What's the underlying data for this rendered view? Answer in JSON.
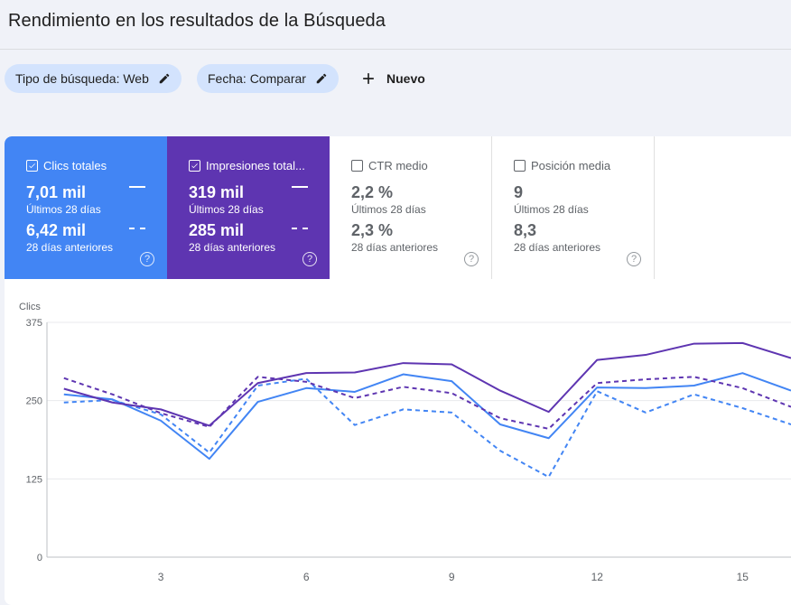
{
  "header": {
    "title": "Rendimiento en los resultados de la Búsqueda"
  },
  "filters": {
    "search_type": "Tipo de búsqueda: Web",
    "date": "Fecha: Comparar",
    "new_label": "Nuevo"
  },
  "metrics": [
    {
      "label": "Clics totales",
      "checked": true,
      "current": "7,01 mil",
      "current_period": "Últimos 28 días",
      "previous": "6,42 mil",
      "previous_period": "28 días anteriores"
    },
    {
      "label": "Impresiones total...",
      "checked": true,
      "current": "319 mil",
      "current_period": "Últimos 28 días",
      "previous": "285 mil",
      "previous_period": "28 días anteriores"
    },
    {
      "label": "CTR medio",
      "checked": false,
      "current": "2,2 %",
      "current_period": "Últimos 28 días",
      "previous": "2,3 %",
      "previous_period": "28 días anteriores"
    },
    {
      "label": "Posición media",
      "checked": false,
      "current": "9",
      "current_period": "Últimos 28 días",
      "previous": "8,3",
      "previous_period": "28 días anteriores"
    }
  ],
  "colors": {
    "clicks": "#4285f4",
    "impressions": "#5e35b1",
    "chip_bg": "#d3e3fd"
  },
  "chart_data": {
    "type": "line",
    "ylabel": "Clics",
    "ylim": [
      0,
      375
    ],
    "yticks": [
      0,
      125,
      250,
      375
    ],
    "xticks": [
      3,
      6,
      9,
      12,
      15
    ],
    "x": [
      1,
      2,
      3,
      4,
      5,
      6,
      7,
      8,
      9,
      10,
      11,
      12,
      13,
      14,
      15,
      16
    ],
    "series": [
      {
        "metric": "clicks",
        "period": "current",
        "style": "solid",
        "color": "#4285f4",
        "values": [
          260,
          252,
          218,
          157,
          248,
          270,
          264,
          292,
          281,
          212,
          190,
          271,
          270,
          274,
          294,
          266
        ]
      },
      {
        "metric": "clicks",
        "period": "previous",
        "style": "dashed",
        "color": "#4285f4",
        "values": [
          247,
          251,
          228,
          167,
          274,
          285,
          211,
          236,
          231,
          170,
          128,
          265,
          231,
          260,
          238,
          212
        ]
      },
      {
        "metric": "impressions",
        "period": "current",
        "style": "solid",
        "color": "#5e35b1",
        "values": [
          269,
          247,
          236,
          210,
          278,
          294,
          295,
          310,
          308,
          266,
          232,
          315,
          323,
          341,
          342,
          318
        ]
      },
      {
        "metric": "impressions",
        "period": "previous",
        "style": "dashed",
        "color": "#5e35b1",
        "values": [
          286,
          260,
          230,
          208,
          288,
          280,
          254,
          272,
          262,
          222,
          205,
          278,
          284,
          288,
          270,
          240
        ]
      }
    ]
  }
}
